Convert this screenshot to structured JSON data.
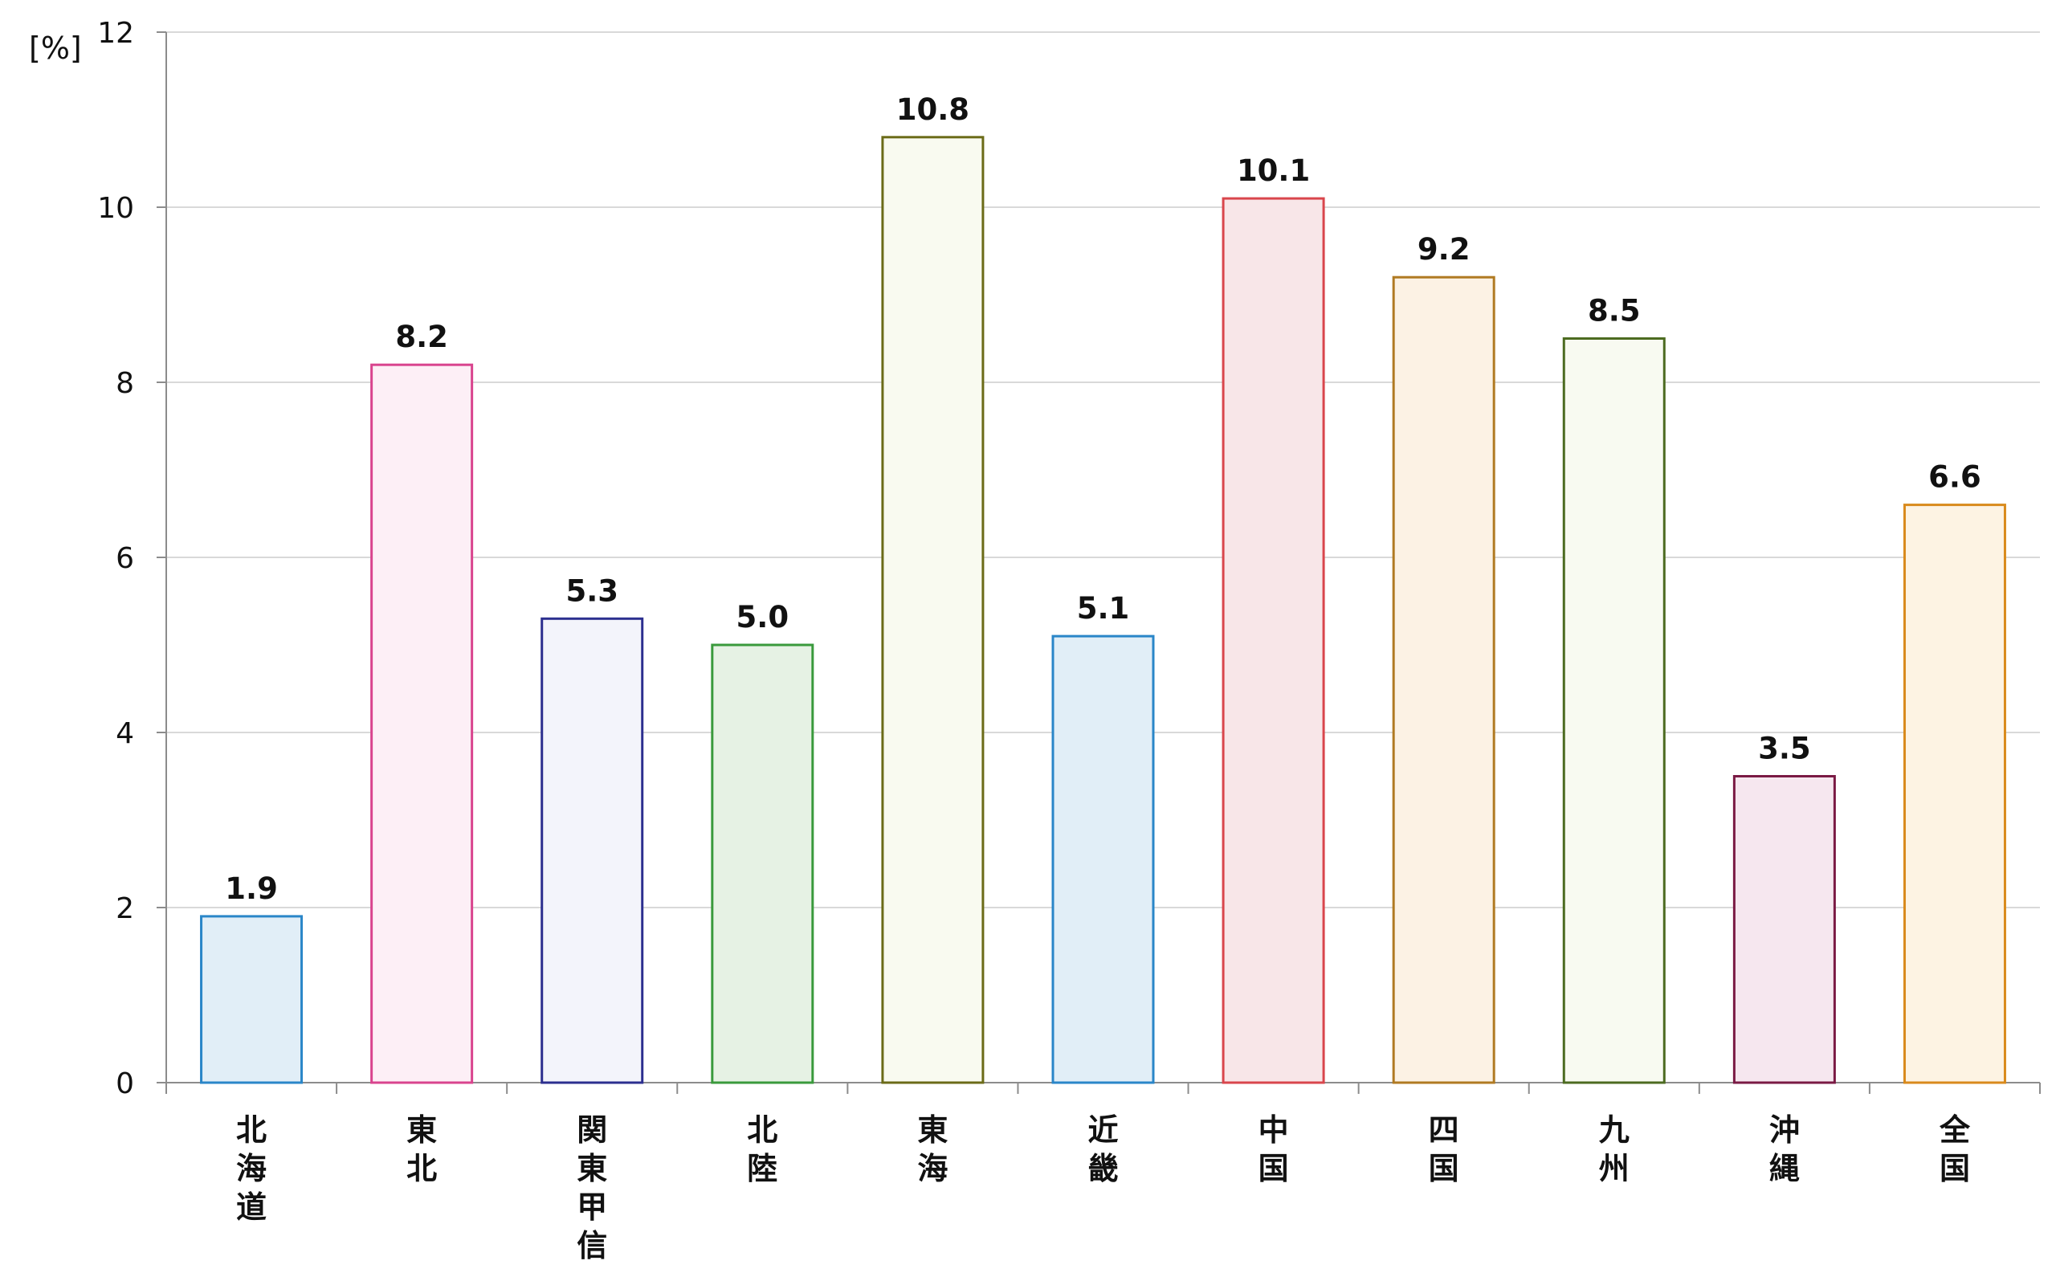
{
  "chart_data": {
    "type": "bar",
    "title": "",
    "xlabel": "",
    "ylabel": "[%]",
    "ylim": [
      0,
      12
    ],
    "yticks": [
      0,
      2,
      4,
      6,
      8,
      10,
      12
    ],
    "grid": true,
    "legend": "none",
    "categories": [
      "北海道",
      "東北",
      "関東甲信",
      "北陸",
      "東海",
      "近畿",
      "中国",
      "四国",
      "九州",
      "沖縄",
      "全国"
    ],
    "values": [
      1.9,
      8.2,
      5.3,
      5.0,
      10.8,
      5.1,
      10.1,
      9.2,
      8.5,
      3.5,
      6.6
    ],
    "data_labels": [
      "1.9",
      "8.2",
      "5.3",
      "5.0",
      "10.8",
      "5.1",
      "10.1",
      "9.2",
      "8.5",
      "3.5",
      "6.6"
    ],
    "bar_colors": [
      {
        "fill": "#e1eef7",
        "stroke": "#2a86c8"
      },
      {
        "fill": "#fdeff6",
        "stroke": "#d9448e"
      },
      {
        "fill": "#f3f4fb",
        "stroke": "#2c2f8f"
      },
      {
        "fill": "#e6f2e4",
        "stroke": "#3a9a3c"
      },
      {
        "fill": "#f9faf0",
        "stroke": "#6b6b18"
      },
      {
        "fill": "#e1eef7",
        "stroke": "#2a86c8"
      },
      {
        "fill": "#f8e6e8",
        "stroke": "#d9464c"
      },
      {
        "fill": "#fcf2e4",
        "stroke": "#b07a22"
      },
      {
        "fill": "#f8faf1",
        "stroke": "#4c6b20"
      },
      {
        "fill": "#f6e7ef",
        "stroke": "#7a1a44"
      },
      {
        "fill": "#fdf3e3",
        "stroke": "#d98a1c"
      }
    ],
    "colors": {
      "grid": "#d9d9d9",
      "axis": "#8c8c8c",
      "text": "#111111"
    }
  }
}
